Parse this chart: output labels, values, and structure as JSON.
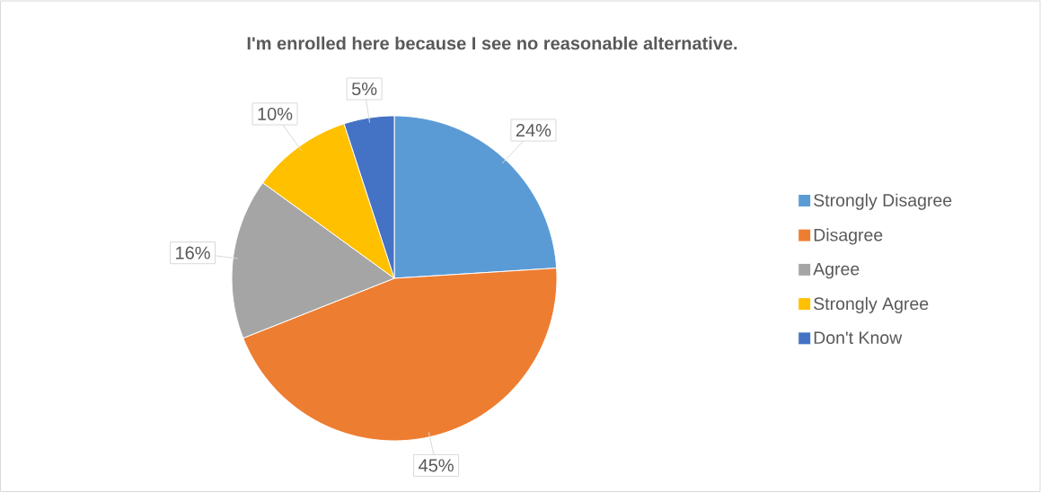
{
  "chart_data": {
    "type": "pie",
    "title": "I'm enrolled here because I see no reasonable alternative.",
    "categories": [
      "Strongly Disagree",
      "Disagree",
      "Agree",
      "Strongly Agree",
      "Don't Know"
    ],
    "values": [
      24,
      45,
      16,
      10,
      5
    ],
    "colors": [
      "#5b9bd5",
      "#ed7d31",
      "#a5a5a5",
      "#ffc000",
      "#4472c4"
    ],
    "value_labels": [
      "24%",
      "45%",
      "16%",
      "10%",
      "5%"
    ],
    "legend": "right"
  }
}
